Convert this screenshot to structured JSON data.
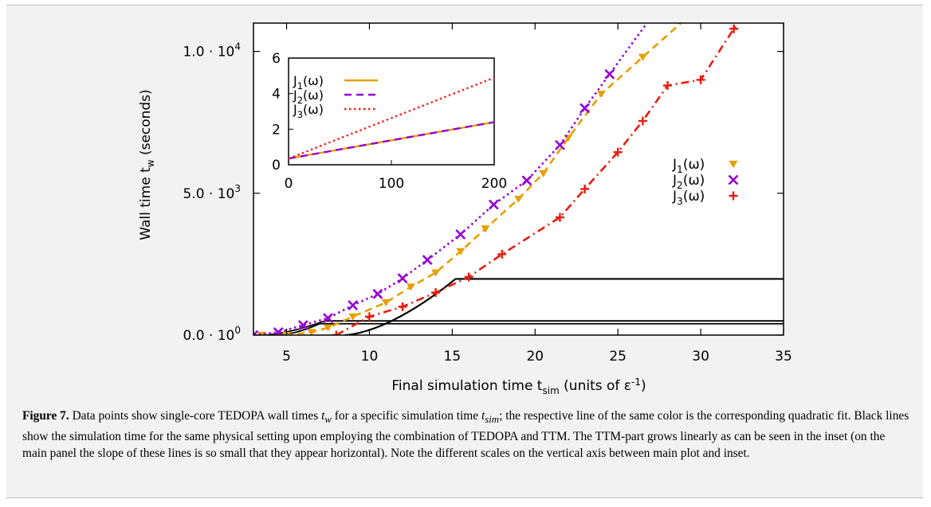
{
  "chart_data": [
    {
      "type": "scatter",
      "xlabel": "Final simulation time t_sim (units of ε^-1)",
      "ylabel": "Wall time t_w (seconds)",
      "xlim": [
        3,
        35
      ],
      "ylim": [
        0,
        11000
      ],
      "x_ticks": [
        5,
        10,
        15,
        20,
        25,
        30,
        35
      ],
      "y_ticks": [
        {
          "value": 0,
          "mantissa": "0.0 · 10",
          "exp": "0"
        },
        {
          "value": 5000,
          "mantissa": "5.0 · 10",
          "exp": "3"
        },
        {
          "value": 10000,
          "mantissa": "1.0 · 10",
          "exp": "4"
        }
      ],
      "legend_position": "right",
      "series": [
        {
          "name": "J1(ω)",
          "label_main": "J",
          "label_sub": "1",
          "label_tail": "(ω)",
          "color": "#e69f00",
          "marker": "triangle-down",
          "fit_line": "dashed",
          "points": [
            [
              3.5,
              0
            ],
            [
              5,
              0
            ],
            [
              6.5,
              100
            ],
            [
              7.5,
              260
            ],
            [
              9,
              650
            ],
            [
              11,
              1150
            ],
            [
              12.5,
              1700
            ],
            [
              14,
              2200
            ],
            [
              15.5,
              2950
            ],
            [
              17,
              3750
            ],
            [
              19,
              4800
            ],
            [
              20.5,
              5700
            ],
            [
              22,
              6950
            ],
            [
              24,
              8500
            ],
            [
              26.5,
              9800
            ]
          ]
        },
        {
          "name": "J2(ω)",
          "label_main": "J",
          "label_sub": "2",
          "label_tail": "(ω)",
          "color": "#9400d3",
          "marker": "cross-x",
          "fit_line": "dotted",
          "points": [
            [
              3,
              0
            ],
            [
              4.5,
              100
            ],
            [
              6,
              350
            ],
            [
              7.5,
              600
            ],
            [
              9,
              1050
            ],
            [
              10.5,
              1450
            ],
            [
              12,
              2000
            ],
            [
              13.5,
              2650
            ],
            [
              15.5,
              3550
            ],
            [
              17.5,
              4600
            ],
            [
              19.5,
              5450
            ],
            [
              21.5,
              6700
            ],
            [
              23,
              8000
            ],
            [
              24.5,
              9200
            ]
          ]
        },
        {
          "name": "J3(ω)",
          "label_main": "J",
          "label_sub": "3",
          "label_tail": "(ω)",
          "color": "#e51e10",
          "marker": "plus",
          "fit_line": "dash-dot",
          "points": [
            [
              8,
              0
            ],
            [
              10,
              650
            ],
            [
              12,
              1000
            ],
            [
              14,
              1500
            ],
            [
              16,
              2050
            ],
            [
              18,
              2850
            ],
            [
              21.5,
              4150
            ],
            [
              23,
              5150
            ],
            [
              25,
              6450
            ],
            [
              26.5,
              7550
            ],
            [
              28,
              8800
            ],
            [
              30,
              9000
            ],
            [
              32,
              10800
            ]
          ]
        }
      ]
    },
    {
      "type": "line",
      "xlim": [
        0,
        200
      ],
      "ylim": [
        0,
        6
      ],
      "x_ticks": [
        0,
        100,
        200
      ],
      "y_ticks": [
        0,
        2,
        4,
        6
      ],
      "series": [
        {
          "name": "J1(ω)",
          "label_main": "J",
          "label_sub": "1",
          "label_tail": "(ω)",
          "color": "#e69f00",
          "style": "solid",
          "points": [
            [
              0,
              0.35
            ],
            [
              200,
              2.4
            ]
          ]
        },
        {
          "name": "J2(ω)",
          "label_main": "J",
          "label_sub": "2",
          "label_tail": "(ω)",
          "color": "#9400d3",
          "style": "dashed",
          "points": [
            [
              0,
              0.35
            ],
            [
              200,
              2.4
            ]
          ]
        },
        {
          "name": "J3(ω)",
          "label_main": "J",
          "label_sub": "3",
          "label_tail": "(ω)",
          "color": "#ff2020",
          "style": "dotted",
          "points": [
            [
              0,
              0.35
            ],
            [
              200,
              4.9
            ]
          ]
        }
      ]
    }
  ],
  "caption": {
    "label": "Figure 7.",
    "p1": " Data points show single-core TEDOPA wall times ",
    "tw_base": "t",
    "tw_sub": "w",
    "p2": " for a specific simulation time ",
    "tsim_base": "t",
    "tsim_sub": "sim",
    "p3": "; the respective line of the same color is the corresponding quadratic fit. Black lines show the simulation time for the same physical setting upon employing the combination of TEDOPA and TTM. The TTM-part grows linearly as can be seen in the inset (on the main panel the slope of these lines is so small that they appear horizontal). Note the different scales on the vertical axis between main plot and inset."
  }
}
